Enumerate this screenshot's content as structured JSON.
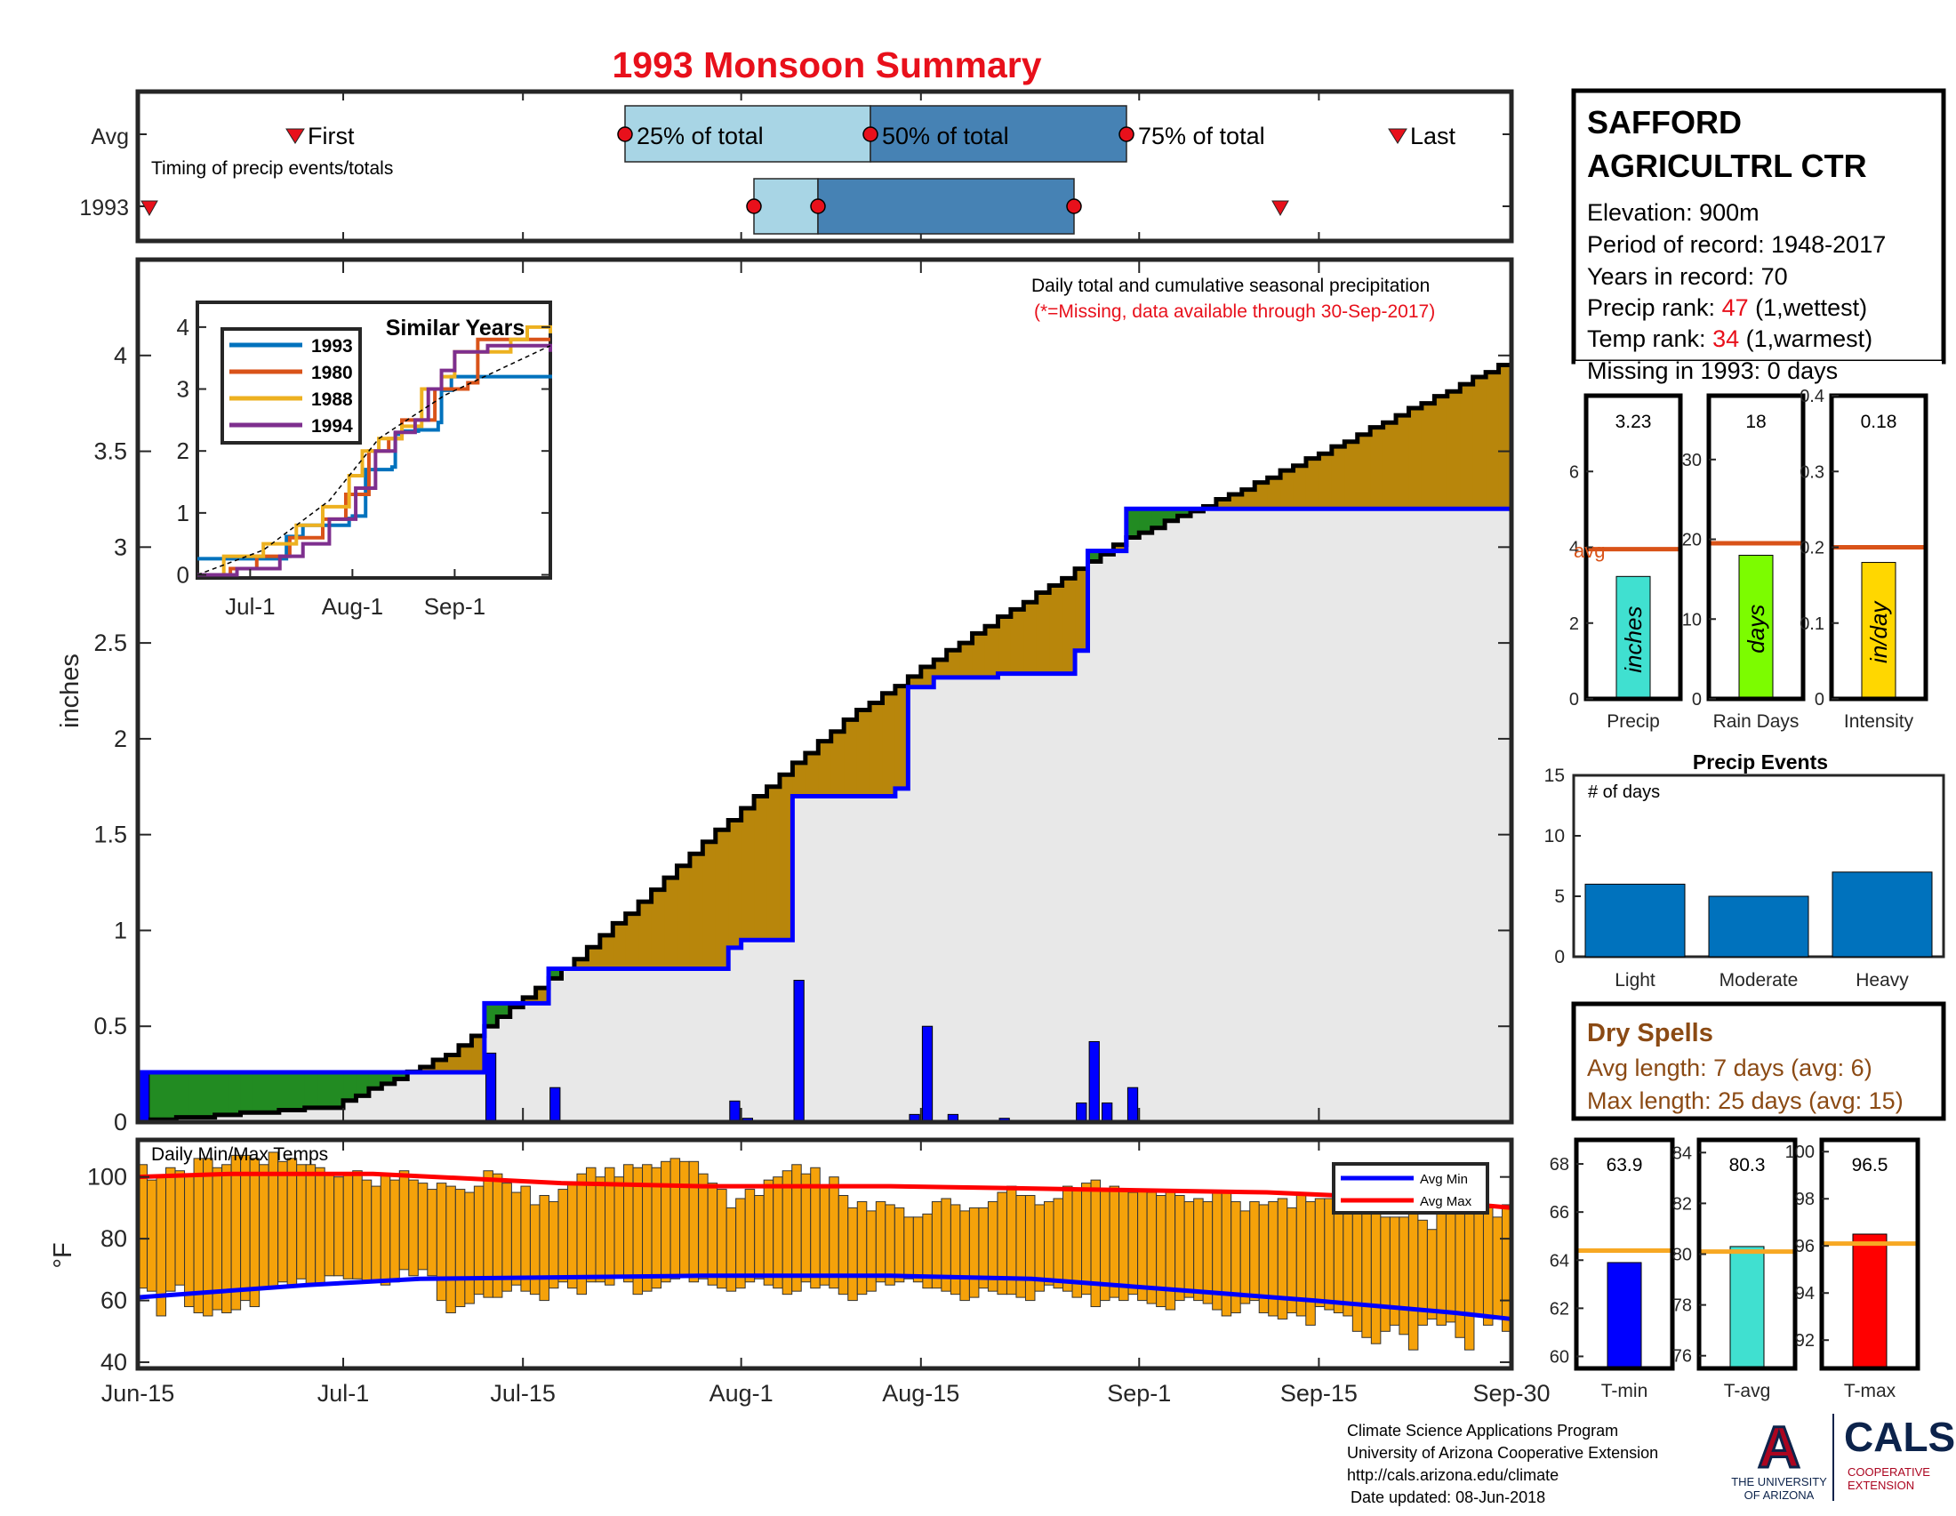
{
  "title": "1993 Monsoon Summary",
  "station": {
    "name_line1": "SAFFORD",
    "name_line2": "AGRICULTRL CTR",
    "elevation": "Elevation: 900m",
    "period": "Period of record: 1948-2017",
    "years": "Years in record: 70",
    "precip_rank_label": "Precip rank: ",
    "precip_rank_value": "47",
    "precip_rank_note": " (1,wettest)",
    "temp_rank_label": "Temp rank: ",
    "temp_rank_value": "34",
    "temp_rank_note": " (1,warmest)",
    "missing": "Missing in 1993: 0 days"
  },
  "colors": {
    "title_red": "#e8101b",
    "rank_red": "#e8101b",
    "brown_text": "#8b4a14",
    "avg_line_orange": "#d95319",
    "temp_avg_line": "#f7a823",
    "box_light": "#a8d5e5",
    "box_dark": "#4682b4",
    "green_fill": "#228b22",
    "brown_fill": "#b8860b",
    "gray_fill": "#e8e8e8",
    "blue_line": "#0000ff",
    "temp_bar": "#f5a20a",
    "precip_bar": "#40e0d0",
    "raindays_bar": "#7cfc00",
    "intensity_bar": "#ffd700",
    "events_bar": "#0072bd",
    "tmin_bar": "#0000ff",
    "tavg_bar": "#40e0d0",
    "tmax_bar": "#ff0000"
  },
  "chart_data": [
    {
      "type": "timing",
      "rows": [
        "Avg",
        "1993"
      ],
      "labels": {
        "first": "First",
        "last": "Last",
        "p25": "25% of total",
        "p50": "50% of total",
        "p75": "75% of total",
        "note": "Timing of precip events/totals"
      },
      "avg": {
        "first": "Jun-25",
        "p25": "Jul-22",
        "p50": "Aug-4",
        "p75": "Aug-18",
        "last": "Sep-18"
      },
      "year": {
        "first": "Jun-15",
        "p25": "Jul-29",
        "p50": "Aug-2",
        "p75": "Aug-16",
        "last": "Sep-12"
      }
    },
    {
      "type": "area",
      "title": "Daily total and cumulative seasonal precipitation",
      "subtitle": "(*=Missing, data available through 30-Sep-2017)",
      "ylabel": "inches",
      "xlim": [
        "Jun-15",
        "Sep-30"
      ],
      "ylim": [
        0,
        4.5
      ],
      "yticks": [
        "0",
        "0.5",
        "1",
        "1.5",
        "2",
        "2.5",
        "3",
        "3.5",
        "4"
      ],
      "xticks": [
        "Jun-15",
        "Jul-1",
        "Jul-15",
        "Aug-1",
        "Aug-15",
        "Sep-1",
        "Sep-15",
        "Sep-30"
      ],
      "daily_precip": [
        {
          "date": "Jun-15",
          "value": 0.26
        },
        {
          "date": "Jul-12",
          "value": 0.36
        },
        {
          "date": "Jul-17",
          "value": 0.18
        },
        {
          "date": "Jul-31",
          "value": 0.11
        },
        {
          "date": "Aug-1",
          "value": 0.02
        },
        {
          "date": "Aug-5",
          "value": 0.74
        },
        {
          "date": "Aug-14",
          "value": 0.04
        },
        {
          "date": "Aug-15",
          "value": 0.5
        },
        {
          "date": "Aug-17",
          "value": 0.04
        },
        {
          "date": "Aug-21",
          "value": 0.02
        },
        {
          "date": "Aug-27",
          "value": 0.1
        },
        {
          "date": "Aug-28",
          "value": 0.42
        },
        {
          "date": "Aug-29",
          "value": 0.1
        },
        {
          "date": "Aug-31",
          "value": 0.18
        }
      ],
      "cumulative_1993": [
        {
          "date": "Jun-15",
          "value": 0.26
        },
        {
          "date": "Jul-12",
          "value": 0.62
        },
        {
          "date": "Jul-17",
          "value": 0.8
        },
        {
          "date": "Jul-31",
          "value": 0.91
        },
        {
          "date": "Aug-1",
          "value": 0.95
        },
        {
          "date": "Aug-5",
          "value": 1.7
        },
        {
          "date": "Aug-13",
          "value": 1.74
        },
        {
          "date": "Aug-14",
          "value": 2.27
        },
        {
          "date": "Aug-16",
          "value": 2.32
        },
        {
          "date": "Aug-21",
          "value": 2.34
        },
        {
          "date": "Aug-27",
          "value": 2.46
        },
        {
          "date": "Aug-28",
          "value": 2.98
        },
        {
          "date": "Aug-31",
          "value": 3.2
        },
        {
          "date": "Sep-30",
          "value": 3.23
        }
      ],
      "cumulative_avg_points": [
        {
          "date": "Jun-15",
          "value": 0.0
        },
        {
          "date": "Jul-1",
          "value": 0.08
        },
        {
          "date": "Jul-10",
          "value": 0.35
        },
        {
          "date": "Jul-20",
          "value": 0.85
        },
        {
          "date": "Aug-1",
          "value": 1.58
        },
        {
          "date": "Aug-10",
          "value": 2.1
        },
        {
          "date": "Aug-20",
          "value": 2.55
        },
        {
          "date": "Sep-1",
          "value": 3.05
        },
        {
          "date": "Sep-10",
          "value": 3.3
        },
        {
          "date": "Sep-20",
          "value": 3.62
        },
        {
          "date": "Sep-30",
          "value": 3.95
        }
      ]
    },
    {
      "type": "line",
      "title": "Similar Years",
      "xticks": [
        "Jul-1",
        "Aug-1",
        "Sep-1"
      ],
      "yticks": [
        "0",
        "1",
        "2",
        "3",
        "4"
      ],
      "ylim": [
        0,
        4
      ],
      "series": [
        {
          "name": "1993",
          "color": "#0072bd",
          "points": [
            [
              0,
              0.26
            ],
            [
              27,
              0.62
            ],
            [
              32,
              0.8
            ],
            [
              46,
              0.91
            ],
            [
              47,
              0.95
            ],
            [
              51,
              1.7
            ],
            [
              59,
              1.74
            ],
            [
              60,
              2.27
            ],
            [
              62,
              2.32
            ],
            [
              67,
              2.34
            ],
            [
              73,
              2.46
            ],
            [
              74,
              2.98
            ],
            [
              77,
              3.2
            ],
            [
              107,
              3.23
            ]
          ]
        },
        {
          "name": "1980",
          "color": "#d95319",
          "points": [
            [
              0,
              0.0
            ],
            [
              10,
              0.1
            ],
            [
              18,
              0.3
            ],
            [
              28,
              0.6
            ],
            [
              38,
              0.9
            ],
            [
              45,
              1.3
            ],
            [
              52,
              2.0
            ],
            [
              58,
              2.2
            ],
            [
              62,
              2.5
            ],
            [
              70,
              2.5
            ],
            [
              72,
              3.0
            ],
            [
              82,
              3.1
            ],
            [
              85,
              3.8
            ],
            [
              107,
              3.8
            ]
          ]
        },
        {
          "name": "1988",
          "color": "#edb120",
          "points": [
            [
              0,
              0.0
            ],
            [
              8,
              0.3
            ],
            [
              20,
              0.5
            ],
            [
              30,
              0.8
            ],
            [
              38,
              1.1
            ],
            [
              46,
              1.6
            ],
            [
              50,
              2.0
            ],
            [
              55,
              2.2
            ],
            [
              62,
              2.4
            ],
            [
              68,
              3.0
            ],
            [
              74,
              3.2
            ],
            [
              78,
              3.6
            ],
            [
              95,
              3.8
            ],
            [
              100,
              4.0
            ],
            [
              107,
              3.9
            ]
          ]
        },
        {
          "name": "1994",
          "color": "#7e2f8e",
          "points": [
            [
              0,
              0.0
            ],
            [
              12,
              0.1
            ],
            [
              25,
              0.3
            ],
            [
              32,
              0.5
            ],
            [
              40,
              0.9
            ],
            [
              48,
              1.4
            ],
            [
              54,
              2.0
            ],
            [
              60,
              2.3
            ],
            [
              66,
              2.5
            ],
            [
              70,
              3.0
            ],
            [
              74,
              3.3
            ],
            [
              78,
              3.6
            ],
            [
              88,
              3.7
            ],
            [
              107,
              3.6
            ]
          ]
        }
      ],
      "avg_dashed": [
        [
          0,
          0
        ],
        [
          20,
          0.4
        ],
        [
          40,
          1.2
        ],
        [
          55,
          2.2
        ],
        [
          75,
          2.9
        ],
        [
          107,
          3.7
        ]
      ]
    },
    {
      "type": "bar",
      "title": "Daily Min/Max Temps",
      "ylabel": "°F",
      "ylim": [
        38,
        112
      ],
      "yticks": [
        "40",
        "60",
        "80",
        "100"
      ],
      "legend": [
        "Avg Min",
        "Avg Max"
      ],
      "avg_min_points": [
        [
          0,
          61
        ],
        [
          18,
          65
        ],
        [
          30,
          67
        ],
        [
          60,
          68
        ],
        [
          80,
          68
        ],
        [
          95,
          67
        ],
        [
          108,
          64
        ],
        [
          125,
          60
        ],
        [
          140,
          56
        ],
        [
          146,
          54
        ]
      ],
      "avg_max_points": [
        [
          0,
          100
        ],
        [
          10,
          101
        ],
        [
          25,
          101
        ],
        [
          45,
          98
        ],
        [
          60,
          97
        ],
        [
          80,
          97
        ],
        [
          100,
          96
        ],
        [
          120,
          95
        ],
        [
          135,
          93
        ],
        [
          146,
          90
        ]
      ],
      "daily_min": [
        64,
        63,
        55,
        63,
        65,
        58,
        56,
        55,
        57,
        56,
        57,
        60,
        58,
        64,
        64,
        66,
        65,
        67,
        65,
        65,
        68,
        68,
        67,
        67,
        66,
        66,
        65,
        66,
        70,
        68,
        70,
        68,
        60,
        56,
        58,
        59,
        62,
        61,
        61,
        63,
        65,
        63,
        62,
        60,
        64,
        66,
        64,
        62,
        66,
        66,
        65,
        68,
        66,
        62,
        63,
        64,
        66,
        67,
        68,
        66,
        67,
        65,
        64,
        63,
        64,
        66,
        67,
        65,
        64,
        62,
        63,
        66,
        64,
        65,
        64,
        62,
        60,
        62,
        63,
        66,
        65,
        66,
        67,
        66,
        64,
        64,
        63,
        62,
        60,
        61,
        64,
        63,
        62,
        62,
        61,
        60,
        63,
        65,
        64,
        63,
        61,
        62,
        58,
        60,
        61,
        60,
        62,
        60,
        59,
        58,
        57,
        60,
        61,
        60,
        59,
        57,
        55,
        56,
        59,
        60,
        56,
        55,
        54,
        56,
        55,
        52,
        58,
        57,
        56,
        55,
        50,
        48,
        46,
        50,
        52,
        49,
        44,
        52,
        54,
        52,
        53,
        48,
        44,
        55,
        52,
        54,
        50
      ],
      "daily_max": [
        104,
        99,
        100,
        103,
        102,
        101,
        106,
        106,
        103,
        104,
        107,
        107,
        106,
        104,
        108,
        105,
        106,
        104,
        104,
        103,
        101,
        100,
        101,
        102,
        99,
        97,
        101,
        99,
        102,
        99,
        98,
        96,
        98,
        97,
        96,
        95,
        97,
        102,
        101,
        98,
        95,
        97,
        91,
        94,
        92,
        96,
        98,
        101,
        103,
        100,
        103,
        100,
        104,
        103,
        104,
        103,
        105,
        106,
        105,
        105,
        101,
        98,
        96,
        90,
        93,
        96,
        94,
        99,
        100,
        102,
        104,
        101,
        103,
        97,
        100,
        94,
        90,
        92,
        89,
        92,
        91,
        90,
        87,
        87,
        88,
        92,
        93,
        91,
        89,
        90,
        90,
        92,
        95,
        97,
        94,
        94,
        91,
        92,
        93,
        97,
        96,
        98,
        99,
        96,
        97,
        96,
        95,
        96,
        95,
        94,
        96,
        94,
        92,
        93,
        92,
        95,
        95,
        92,
        89,
        92,
        91,
        92,
        93,
        90,
        94,
        92,
        93,
        93,
        90,
        90,
        90,
        89,
        90,
        87,
        87,
        87,
        88,
        86,
        83,
        93,
        93,
        91,
        91,
        91,
        90,
        87,
        91
      ]
    },
    {
      "type": "bar",
      "categories": [
        "Precip",
        "Rain Days",
        "Intensity"
      ],
      "values": [
        3.23,
        18,
        0.18
      ],
      "value_labels": [
        "3.23",
        "18",
        "0.18"
      ],
      "unit_labels": [
        "inches",
        "days",
        "in/day"
      ],
      "avg_values": [
        3.95,
        19.5,
        0.2
      ],
      "avg_label": "avg",
      "ylims": [
        [
          0,
          8
        ],
        [
          0,
          38
        ],
        [
          0,
          0.4
        ]
      ],
      "yticks": [
        [
          "0",
          "2",
          "4",
          "6"
        ],
        [
          "0",
          "10",
          "20",
          "30"
        ],
        [
          "0",
          "0.1",
          "0.2",
          "0.3",
          "0.4"
        ]
      ]
    },
    {
      "type": "bar",
      "title": "Precip Events",
      "ylabel_note": "# of days",
      "categories": [
        "Light",
        "Moderate",
        "Heavy"
      ],
      "values": [
        6,
        5,
        7
      ],
      "ylim": [
        0,
        15
      ],
      "yticks": [
        "0",
        "5",
        "10",
        "15"
      ]
    },
    {
      "type": "bar",
      "categories": [
        "T-min",
        "T-avg",
        "T-max"
      ],
      "values": [
        63.9,
        80.3,
        96.5
      ],
      "value_labels": [
        "63.9",
        "80.3",
        "96.5"
      ],
      "avg_values": [
        64.4,
        80.1,
        96.1
      ],
      "ylims": [
        [
          59.5,
          69
        ],
        [
          75.5,
          84.5
        ],
        [
          90.8,
          100.5
        ]
      ],
      "yticks": [
        [
          "60",
          "62",
          "64",
          "66",
          "68"
        ],
        [
          "76",
          "78",
          "80",
          "82",
          "84"
        ],
        [
          "92",
          "94",
          "96",
          "98",
          "100"
        ]
      ]
    }
  ],
  "dry_spells": {
    "title": "Dry Spells",
    "avg_length": "Avg length: 7 days (avg: 6)",
    "max_length": "Max length: 25 days (avg: 15)"
  },
  "footer": {
    "line1": "Climate Science Applications Program",
    "line2": "University of Arizona Cooperative Extension",
    "line3": "http://cals.arizona.edu/climate",
    "line4": "Date updated: 08-Jun-2018"
  },
  "logos": {
    "ua_letter": "A",
    "ua_line1": "THE UNIVERSITY",
    "ua_line2": "OF ARIZONA",
    "cals": "CALS",
    "cals_line1": "COOPERATIVE",
    "cals_line2": "EXTENSION"
  }
}
